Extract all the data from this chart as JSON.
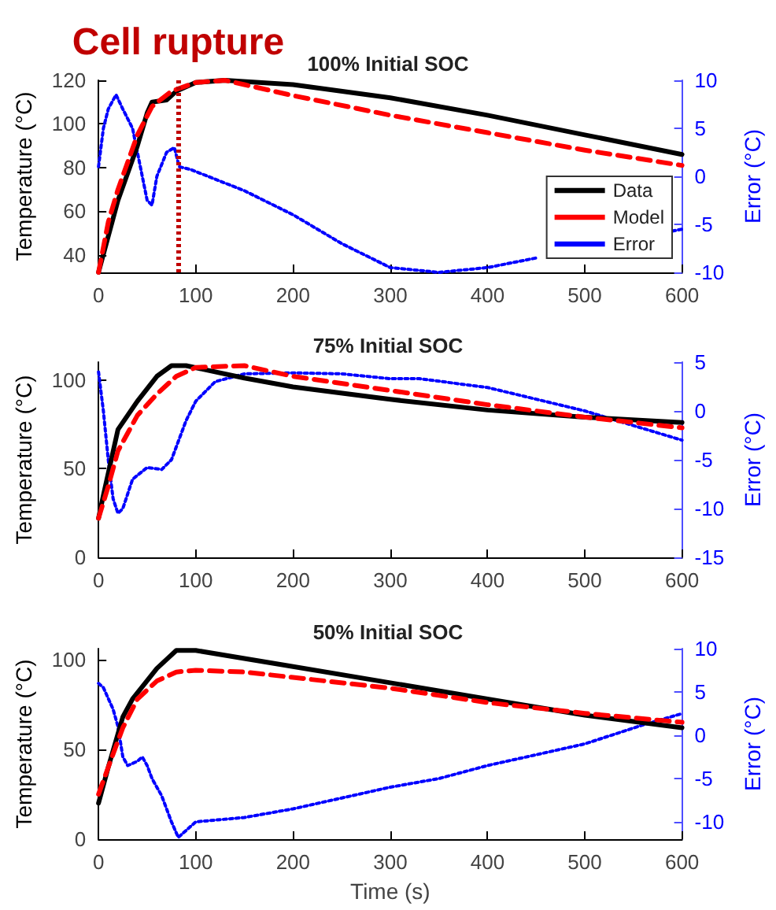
{
  "chart_data": [
    {
      "type": "line",
      "title": "100% Initial SOC",
      "ylabel": "Temperature (°C)",
      "y2label": "Error (°C)",
      "xlim": [
        0,
        600
      ],
      "xticks": [
        0,
        100,
        200,
        300,
        400,
        500,
        600
      ],
      "ylim": [
        32,
        120
      ],
      "yticks": [
        40,
        60,
        80,
        100,
        120
      ],
      "y2lim": [
        -10,
        10
      ],
      "y2ticks": [
        -10,
        -5,
        0,
        5,
        10
      ],
      "legend": "right",
      "grid": false,
      "ref_lines": [
        {
          "axis": "x",
          "value": 82,
          "label": "Cell rupture",
          "color": "#c00000",
          "line_style": "dotted"
        }
      ],
      "series": [
        {
          "name": "Data",
          "color": "#000000",
          "line_style": "solid",
          "x": [
            0,
            20,
            40,
            50,
            55,
            70,
            80,
            100,
            130,
            200,
            300,
            400,
            500,
            600
          ],
          "values": [
            32,
            65,
            90,
            105,
            110,
            111,
            115,
            119,
            120,
            118,
            112,
            104,
            95,
            86
          ]
        },
        {
          "name": "Model",
          "color": "#ff0000",
          "line_style": "dashed",
          "x": [
            0,
            10,
            20,
            40,
            55,
            75,
            100,
            130,
            150,
            200,
            300,
            400,
            500,
            600
          ],
          "values": [
            32,
            55,
            70,
            95,
            108,
            115,
            119,
            120,
            118,
            113,
            104,
            96,
            88,
            81
          ]
        },
        {
          "name": "Error",
          "color": "#0000ff",
          "line_style": "dotted",
          "axis": "y2",
          "x": [
            0,
            5,
            10,
            18,
            25,
            35,
            45,
            50,
            55,
            60,
            70,
            78,
            83,
            95,
            150,
            200,
            250,
            300,
            350,
            400,
            450,
            500,
            550,
            590,
            600
          ],
          "values": [
            1,
            5,
            7,
            8.5,
            7,
            5,
            0,
            -2.5,
            -3,
            0,
            2.5,
            3,
            1,
            0.7,
            -1.5,
            -4,
            -7,
            -9.5,
            -10,
            -9.5,
            -8.5,
            null,
            null,
            -5.7,
            -5.5
          ]
        }
      ]
    },
    {
      "type": "line",
      "title": "75% Initial SOC",
      "ylabel": "Temperature (°C)",
      "y2label": "Error (°C)",
      "xlim": [
        0,
        600
      ],
      "xticks": [
        0,
        100,
        200,
        300,
        400,
        500,
        600
      ],
      "ylim": [
        0,
        110
      ],
      "yticks": [
        0,
        50,
        100
      ],
      "y2lim": [
        -15,
        5
      ],
      "y2ticks": [
        -15,
        -10,
        -5,
        0,
        5
      ],
      "grid": false,
      "series": [
        {
          "color": "#000000",
          "line_style": "solid",
          "x": [
            0,
            5,
            20,
            40,
            60,
            75,
            90,
            150,
            200,
            300,
            400,
            500,
            600
          ],
          "values": [
            22,
            35,
            72,
            88,
            102,
            108,
            108,
            101,
            96,
            89,
            83,
            79,
            76
          ]
        },
        {
          "color": "#ff0000",
          "line_style": "dashed",
          "x": [
            0,
            10,
            20,
            40,
            60,
            80,
            100,
            150,
            200,
            300,
            400,
            500,
            600
          ],
          "values": [
            22,
            40,
            60,
            80,
            92,
            102,
            107,
            108,
            102,
            94,
            86,
            79,
            73
          ]
        },
        {
          "color": "#0000ff",
          "line_style": "dotted",
          "axis": "y2",
          "x": [
            0,
            5,
            10,
            15,
            20,
            25,
            35,
            50,
            65,
            75,
            90,
            100,
            120,
            150,
            200,
            250,
            300,
            330,
            400,
            450,
            500,
            550,
            600
          ],
          "values": [
            4,
            0,
            -5,
            -9,
            -10.5,
            -10,
            -7,
            -5.8,
            -6,
            -5,
            -1,
            1,
            3,
            3.8,
            3.9,
            3.8,
            3.3,
            3.3,
            2.4,
            1.2,
            0,
            -1.5,
            -3
          ]
        }
      ]
    },
    {
      "type": "line",
      "title": "50% Initial SOC",
      "xlabel": "Time (s)",
      "ylabel": "Temperature (°C)",
      "y2label": "Error (°C)",
      "xlim": [
        0,
        600
      ],
      "xticks": [
        0,
        100,
        200,
        300,
        400,
        500,
        600
      ],
      "ylim": [
        0,
        106
      ],
      "yticks": [
        0,
        50,
        100
      ],
      "y2lim": [
        -12,
        10
      ],
      "y2ticks": [
        -10,
        -5,
        0,
        5,
        10
      ],
      "grid": false,
      "series": [
        {
          "color": "#000000",
          "line_style": "solid",
          "x": [
            0,
            10,
            25,
            35,
            60,
            80,
            100,
            200,
            300,
            400,
            500,
            600
          ],
          "values": [
            20,
            40,
            68,
            78,
            95,
            105,
            105,
            96,
            87,
            78,
            69,
            62
          ]
        },
        {
          "color": "#ff0000",
          "line_style": "dashed",
          "x": [
            0,
            10,
            25,
            40,
            60,
            80,
            100,
            150,
            200,
            300,
            400,
            500,
            600
          ],
          "values": [
            25,
            40,
            62,
            78,
            88,
            93,
            94,
            93,
            90,
            84,
            76,
            70,
            65
          ]
        },
        {
          "color": "#0000ff",
          "line_style": "dotted",
          "axis": "y2",
          "x": [
            0,
            5,
            15,
            20,
            25,
            30,
            40,
            45,
            50,
            55,
            65,
            75,
            82,
            90,
            100,
            150,
            200,
            300,
            350,
            400,
            500,
            560,
            600
          ],
          "values": [
            6,
            5.5,
            3,
            1,
            -2.5,
            -3.5,
            -3,
            -2.5,
            -3.5,
            -5,
            -7,
            -10,
            -11.8,
            -11,
            -10,
            -9.5,
            -8.5,
            -6,
            -5,
            -3.5,
            -1,
            1.2,
            2.5
          ]
        }
      ]
    }
  ]
}
